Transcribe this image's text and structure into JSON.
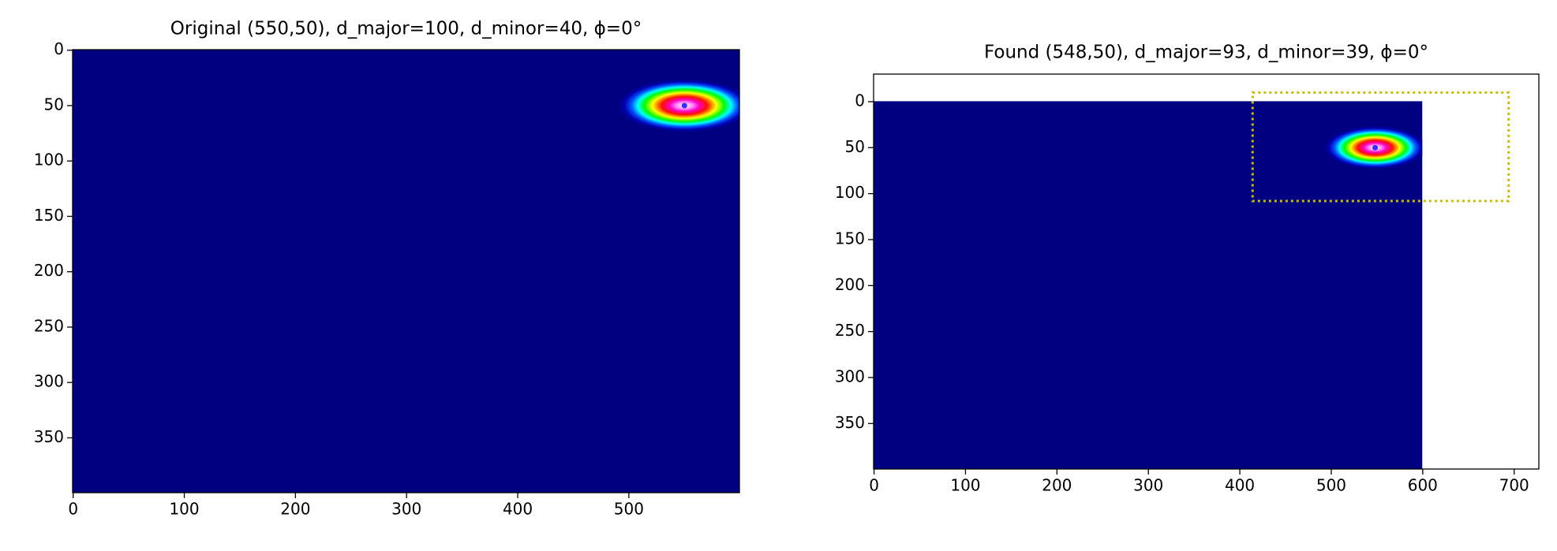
{
  "chart_data": [
    {
      "type": "ellipse-image",
      "title": "Original (550,50), d_major=100, d_minor=40, ϕ=0°",
      "image_size": [
        600,
        400
      ],
      "background": "#000080",
      "center": [
        550,
        50
      ],
      "d_major": 100,
      "d_minor": 40,
      "phi": 0,
      "marker_color": "#3030ff",
      "xlim": [
        -0.5,
        599.5
      ],
      "ylim": [
        399.5,
        -0.5
      ],
      "xticks": [
        0,
        100,
        200,
        300,
        400,
        500
      ],
      "yticks": [
        0,
        50,
        100,
        150,
        200,
        250,
        300,
        350
      ]
    },
    {
      "type": "ellipse-image",
      "title": "Found (548,50), d_major=93, d_minor=39, ϕ=0°",
      "image_size": [
        600,
        400
      ],
      "background": "#000080",
      "center": [
        548,
        50
      ],
      "d_major": 93,
      "d_minor": 39,
      "phi": 0,
      "marker_color": "#3030ff",
      "box": {
        "x": [
          414,
          694
        ],
        "y": [
          -10,
          108
        ],
        "color": "#c8bd00"
      },
      "xlim": [
        -0.5,
        727
      ],
      "ylim": [
        399.5,
        -30
      ],
      "xticks": [
        0,
        100,
        200,
        300,
        400,
        500,
        600,
        700
      ],
      "yticks": [
        0,
        50,
        100,
        150,
        200,
        250,
        300,
        350
      ]
    }
  ]
}
